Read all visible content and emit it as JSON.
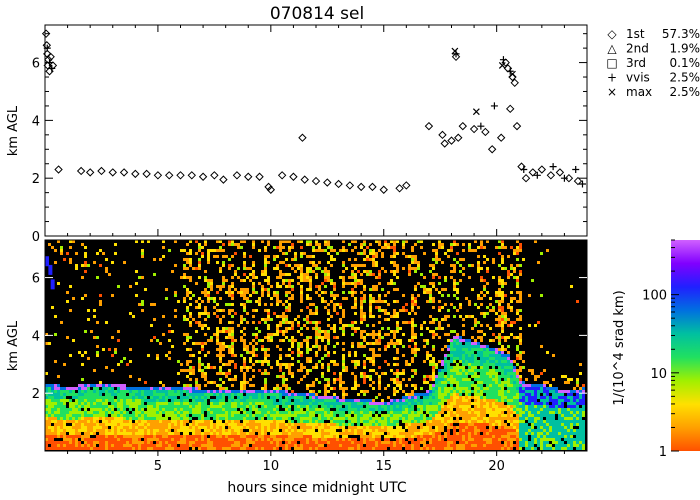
{
  "title": "070814 sel",
  "chart_data": [
    {
      "type": "scatter",
      "panel": "top",
      "ylabel": "km AGL",
      "xlim": [
        0,
        24
      ],
      "ylim": [
        0,
        7.3
      ],
      "y_ticks": [
        "0",
        "2",
        "4",
        "6"
      ],
      "legend": [
        {
          "marker": "◇",
          "label": "1st",
          "value": "57.3%"
        },
        {
          "marker": "△",
          "label": "2nd",
          "value": "1.9%"
        },
        {
          "marker": "□",
          "label": "3rd",
          "value": "0.1%"
        },
        {
          "marker": "+",
          "label": "vvis",
          "value": "2.5%"
        },
        {
          "marker": "×",
          "label": "max",
          "value": "2.5%"
        }
      ],
      "legend_position": "right",
      "series": [
        {
          "marker": "diamond",
          "points": [
            [
              0.05,
              7.0
            ],
            [
              0.08,
              6.6
            ],
            [
              0.1,
              6.3
            ],
            [
              0.12,
              5.9
            ],
            [
              0.15,
              6.1
            ],
            [
              0.2,
              5.7
            ],
            [
              0.25,
              6.2
            ],
            [
              0.35,
              5.9
            ],
            [
              0.6,
              2.3
            ],
            [
              1.6,
              2.25
            ],
            [
              2.0,
              2.2
            ],
            [
              2.5,
              2.25
            ],
            [
              3.0,
              2.2
            ],
            [
              3.5,
              2.2
            ],
            [
              4.0,
              2.15
            ],
            [
              4.5,
              2.15
            ],
            [
              5.0,
              2.1
            ],
            [
              5.5,
              2.1
            ],
            [
              6.0,
              2.1
            ],
            [
              6.5,
              2.1
            ],
            [
              7.0,
              2.05
            ],
            [
              7.5,
              2.1
            ],
            [
              7.9,
              1.95
            ],
            [
              8.5,
              2.1
            ],
            [
              9.0,
              2.05
            ],
            [
              9.5,
              2.05
            ],
            [
              9.9,
              1.7
            ],
            [
              10.0,
              1.6
            ],
            [
              10.5,
              2.1
            ],
            [
              11.0,
              2.05
            ],
            [
              11.4,
              3.4
            ],
            [
              11.5,
              1.95
            ],
            [
              12.0,
              1.9
            ],
            [
              12.5,
              1.85
            ],
            [
              13.0,
              1.8
            ],
            [
              13.5,
              1.75
            ],
            [
              14.0,
              1.7
            ],
            [
              14.5,
              1.7
            ],
            [
              15.0,
              1.6
            ],
            [
              15.7,
              1.65
            ],
            [
              16.0,
              1.75
            ],
            [
              17.0,
              3.8
            ],
            [
              17.6,
              3.5
            ],
            [
              17.7,
              3.2
            ],
            [
              18.0,
              3.3
            ],
            [
              18.2,
              6.2
            ],
            [
              18.3,
              3.4
            ],
            [
              18.5,
              3.8
            ],
            [
              19.0,
              3.7
            ],
            [
              19.5,
              3.6
            ],
            [
              19.8,
              3.0
            ],
            [
              20.2,
              3.4
            ],
            [
              20.4,
              6.0
            ],
            [
              20.5,
              5.8
            ],
            [
              20.6,
              4.4
            ],
            [
              20.7,
              5.5
            ],
            [
              20.8,
              5.3
            ],
            [
              20.9,
              3.8
            ],
            [
              21.1,
              2.4
            ],
            [
              21.3,
              2.0
            ],
            [
              21.6,
              2.2
            ],
            [
              22.0,
              2.3
            ],
            [
              22.4,
              2.1
            ],
            [
              22.8,
              2.2
            ],
            [
              23.2,
              2.0
            ],
            [
              23.6,
              1.9
            ]
          ]
        },
        {
          "marker": "plus",
          "points": [
            [
              0.1,
              6.5
            ],
            [
              0.2,
              6.0
            ],
            [
              0.3,
              5.8
            ],
            [
              18.2,
              6.3
            ],
            [
              19.3,
              3.8
            ],
            [
              19.9,
              4.5
            ],
            [
              20.3,
              6.1
            ],
            [
              20.6,
              5.7
            ],
            [
              21.2,
              2.3
            ],
            [
              21.8,
              2.1
            ],
            [
              22.5,
              2.4
            ],
            [
              23.0,
              2.0
            ],
            [
              23.5,
              2.3
            ],
            [
              23.8,
              1.8
            ]
          ]
        },
        {
          "marker": "x",
          "points": [
            [
              18.15,
              6.4
            ],
            [
              19.1,
              4.3
            ],
            [
              20.25,
              5.9
            ],
            [
              20.7,
              5.6
            ]
          ]
        }
      ]
    },
    {
      "type": "heatmap",
      "panel": "bottom",
      "ylabel": "km AGL",
      "xlabel": "hours since midnight UTC",
      "xlim": [
        0,
        24
      ],
      "ylim": [
        0,
        7.3
      ],
      "x_ticks": [
        "5",
        "10",
        "15",
        "20"
      ],
      "y_ticks": [
        "2",
        "4",
        "6"
      ],
      "colorbar": {
        "label": "1/(10^4 srad km)",
        "scale": "log",
        "range": [
          1,
          500
        ],
        "ticks": [
          "1",
          "10",
          "100"
        ],
        "colors": [
          "#ff5000",
          "#ffa000",
          "#ffe000",
          "#a0f000",
          "#20e060",
          "#00c0a0",
          "#0070e0",
          "#2020ff",
          "#8000ff",
          "#d060ff"
        ]
      },
      "cloud_base_km": [
        [
          0.0,
          2.2
        ],
        [
          1.0,
          2.15
        ],
        [
          2.0,
          2.2
        ],
        [
          3.0,
          2.2
        ],
        [
          4.0,
          2.15
        ],
        [
          5.0,
          2.1
        ],
        [
          6.0,
          2.1
        ],
        [
          7.0,
          2.05
        ],
        [
          8.0,
          2.05
        ],
        [
          9.0,
          2.05
        ],
        [
          10.0,
          2.0
        ],
        [
          11.0,
          1.95
        ],
        [
          12.0,
          1.85
        ],
        [
          13.0,
          1.75
        ],
        [
          14.0,
          1.7
        ],
        [
          15.0,
          1.6
        ],
        [
          16.0,
          1.8
        ],
        [
          17.0,
          2.0
        ],
        [
          18.0,
          3.9
        ],
        [
          19.0,
          3.7
        ],
        [
          20.0,
          3.4
        ],
        [
          20.5,
          3.2
        ],
        [
          21.0,
          2.3
        ],
        [
          22.0,
          2.2
        ],
        [
          23.0,
          2.0
        ],
        [
          24.0,
          2.1
        ]
      ],
      "high_cloud_km": [
        [
          0.0,
          6.6
        ],
        [
          0.15,
          6.3
        ],
        [
          0.25,
          5.8
        ]
      ],
      "dense_columns_hours": [
        6.3,
        6.8,
        7.1,
        7.7,
        8.1,
        8.6,
        9.1,
        9.7,
        10.2,
        10.5,
        10.8,
        11.3,
        11.6,
        12.0,
        12.4,
        12.7,
        13.1,
        13.5,
        13.9,
        14.3,
        14.7,
        15.4,
        16.2,
        17.2,
        18.0,
        19.3,
        20.1,
        20.9
      ]
    }
  ]
}
